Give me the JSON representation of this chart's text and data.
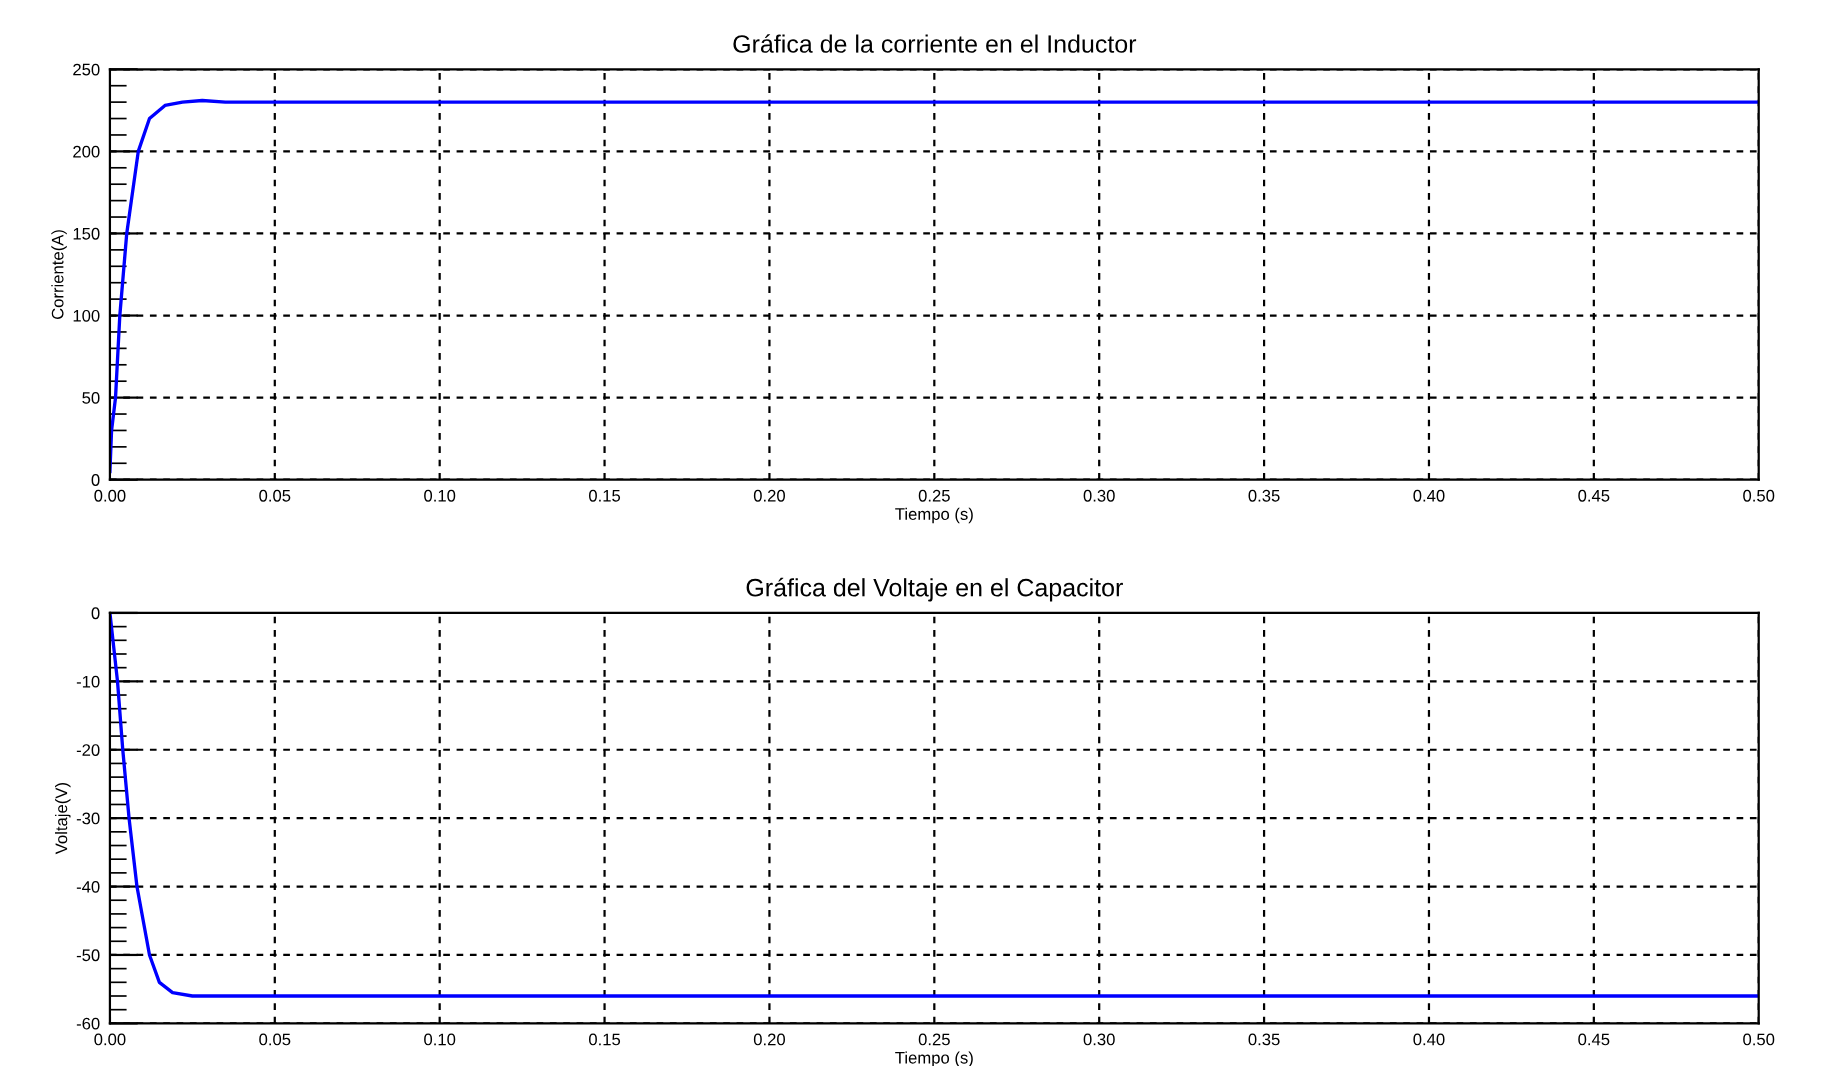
{
  "chart_data": [
    {
      "type": "line",
      "title": "Gráfica de la corriente en el Inductor",
      "xlabel": "Tiempo (s)",
      "ylabel": "Corriente(A)",
      "x": [
        0,
        0.0005,
        0.0017,
        0.003,
        0.0051,
        0.0086,
        0.012,
        0.0167,
        0.022,
        0.028,
        0.035,
        0.5
      ],
      "series": [
        {
          "color": "#0000ff",
          "values": [
            5,
            30,
            50,
            100,
            150,
            200,
            220,
            228,
            230,
            231,
            230,
            230
          ]
        }
      ],
      "xlim": [
        0,
        0.5
      ],
      "ylim": [
        0,
        250
      ],
      "xticks": [
        {
          "value": 0,
          "label": "0.00"
        },
        0.05,
        {
          "value": 0.1,
          "label": "0.10"
        },
        0.15,
        {
          "value": 0.2,
          "label": "0.20"
        },
        0.25,
        {
          "value": 0.3,
          "label": "0.30"
        },
        0.35,
        {
          "value": 0.4,
          "label": "0.40"
        },
        0.45,
        {
          "value": 0.5,
          "label": "0.50"
        }
      ],
      "yticks": [
        0,
        50,
        100,
        150,
        200,
        250
      ],
      "grid": true,
      "line_style": "solid",
      "marker": "none"
    },
    {
      "type": "line",
      "title": "Gráfica del Voltaje en el Capacitor",
      "xlabel": "Tiempo (s)",
      "ylabel": "Voltaje(V)",
      "x": [
        0,
        0.0023,
        0.0039,
        0.0058,
        0.0082,
        0.012,
        0.015,
        0.019,
        0.025,
        0.5
      ],
      "series": [
        {
          "color": "#0000ff",
          "values": [
            0,
            -10,
            -20,
            -30,
            -40,
            -50,
            -54,
            -55.5,
            -56,
            -56
          ]
        }
      ],
      "xlim": [
        0,
        0.5
      ],
      "ylim": [
        -60,
        0
      ],
      "xticks": [
        {
          "value": 0,
          "label": "0.00"
        },
        0.05,
        {
          "value": 0.1,
          "label": "0.10"
        },
        0.15,
        {
          "value": 0.2,
          "label": "0.20"
        },
        0.25,
        {
          "value": 0.3,
          "label": "0.30"
        },
        0.35,
        {
          "value": 0.4,
          "label": "0.40"
        },
        0.45,
        {
          "value": 0.5,
          "label": "0.50"
        }
      ],
      "yticks": [
        -60,
        -50,
        -40,
        -30,
        -20,
        -10,
        0
      ],
      "grid": true,
      "line_style": "solid",
      "marker": "none"
    }
  ]
}
